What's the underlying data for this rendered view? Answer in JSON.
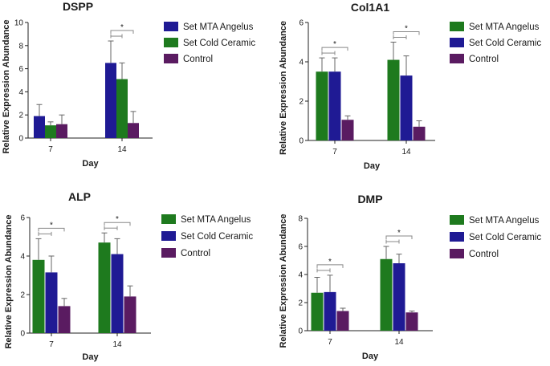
{
  "chart_data": [
    {
      "type": "bar",
      "title": "DSPP",
      "xlabel": "Day",
      "ylabel": "Relative Expression Abundance",
      "categories": [
        "7",
        "14"
      ],
      "ylim": [
        0,
        10
      ],
      "yticks": [
        0,
        2,
        4,
        6,
        8,
        10
      ],
      "series": [
        {
          "name": "Set MTA Angelus",
          "color": "#1f1a94",
          "values": [
            1.9,
            6.5
          ],
          "errors": [
            1.0,
            1.9
          ]
        },
        {
          "name": "Set Cold Ceramic",
          "color": "#1e7a1e",
          "values": [
            1.1,
            5.1
          ],
          "errors": [
            0.3,
            1.4
          ]
        },
        {
          "name": "Control",
          "color": "#5a1b61",
          "values": [
            1.2,
            1.3
          ],
          "errors": [
            0.8,
            1.0
          ]
        }
      ],
      "significance": [
        {
          "category": "14",
          "from": 0,
          "to": 1,
          "label": ""
        },
        {
          "category": "14",
          "from": 0,
          "to": 2,
          "label": "*"
        }
      ]
    },
    {
      "type": "bar",
      "title": "Col1A1",
      "xlabel": "Day",
      "ylabel": "Relative Expression Abundance",
      "categories": [
        "7",
        "14"
      ],
      "ylim": [
        0,
        6
      ],
      "yticks": [
        0,
        2,
        4,
        6
      ],
      "series": [
        {
          "name": "Set MTA Angelus",
          "color": "#1e7a1e",
          "values": [
            3.5,
            4.1
          ],
          "errors": [
            0.7,
            0.9
          ]
        },
        {
          "name": "Set Cold Ceramic",
          "color": "#1f1a94",
          "values": [
            3.5,
            3.3
          ],
          "errors": [
            0.7,
            1.0
          ]
        },
        {
          "name": "Control",
          "color": "#5a1b61",
          "values": [
            1.05,
            0.7
          ],
          "errors": [
            0.2,
            0.3
          ]
        }
      ],
      "significance": [
        {
          "category": "7",
          "from": 0,
          "to": 1,
          "label": ""
        },
        {
          "category": "7",
          "from": 0,
          "to": 2,
          "label": "*"
        },
        {
          "category": "14",
          "from": 0,
          "to": 1,
          "label": ""
        },
        {
          "category": "14",
          "from": 0,
          "to": 2,
          "label": "*"
        }
      ]
    },
    {
      "type": "bar",
      "title": "ALP",
      "xlabel": "Day",
      "ylabel": "Relative Expression Abundance",
      "categories": [
        "7",
        "14"
      ],
      "ylim": [
        0,
        6
      ],
      "yticks": [
        0,
        2,
        4,
        6
      ],
      "series": [
        {
          "name": "Set MTA Angelus",
          "color": "#1e7a1e",
          "values": [
            3.8,
            4.7
          ],
          "errors": [
            1.1,
            0.5
          ]
        },
        {
          "name": "Set Cold Ceramic",
          "color": "#1f1a94",
          "values": [
            3.15,
            4.1
          ],
          "errors": [
            0.85,
            0.8
          ]
        },
        {
          "name": "Control",
          "color": "#5a1b61",
          "values": [
            1.4,
            1.9
          ],
          "errors": [
            0.4,
            0.55
          ]
        }
      ],
      "significance": [
        {
          "category": "7",
          "from": 0,
          "to": 1,
          "label": ""
        },
        {
          "category": "7",
          "from": 0,
          "to": 2,
          "label": "*"
        },
        {
          "category": "14",
          "from": 0,
          "to": 1,
          "label": ""
        },
        {
          "category": "14",
          "from": 0,
          "to": 2,
          "label": "*"
        }
      ]
    },
    {
      "type": "bar",
      "title": "DMP",
      "xlabel": "Day",
      "ylabel": "Relative Expression Abundance",
      "categories": [
        "7",
        "14"
      ],
      "ylim": [
        0,
        8
      ],
      "yticks": [
        0,
        2,
        4,
        6,
        8
      ],
      "series": [
        {
          "name": "Set MTA Angelus",
          "color": "#1e7a1e",
          "values": [
            2.7,
            5.1
          ],
          "errors": [
            1.1,
            0.9
          ]
        },
        {
          "name": "Set Cold Ceramic",
          "color": "#1f1a94",
          "values": [
            2.75,
            4.8
          ],
          "errors": [
            1.2,
            0.65
          ]
        },
        {
          "name": "Control",
          "color": "#5a1b61",
          "values": [
            1.4,
            1.3
          ],
          "errors": [
            0.2,
            0.1
          ]
        }
      ],
      "significance": [
        {
          "category": "7",
          "from": 0,
          "to": 1,
          "label": ""
        },
        {
          "category": "7",
          "from": 0,
          "to": 2,
          "label": "*"
        },
        {
          "category": "14",
          "from": 0,
          "to": 1,
          "label": ""
        },
        {
          "category": "14",
          "from": 0,
          "to": 2,
          "label": "*"
        }
      ]
    }
  ]
}
